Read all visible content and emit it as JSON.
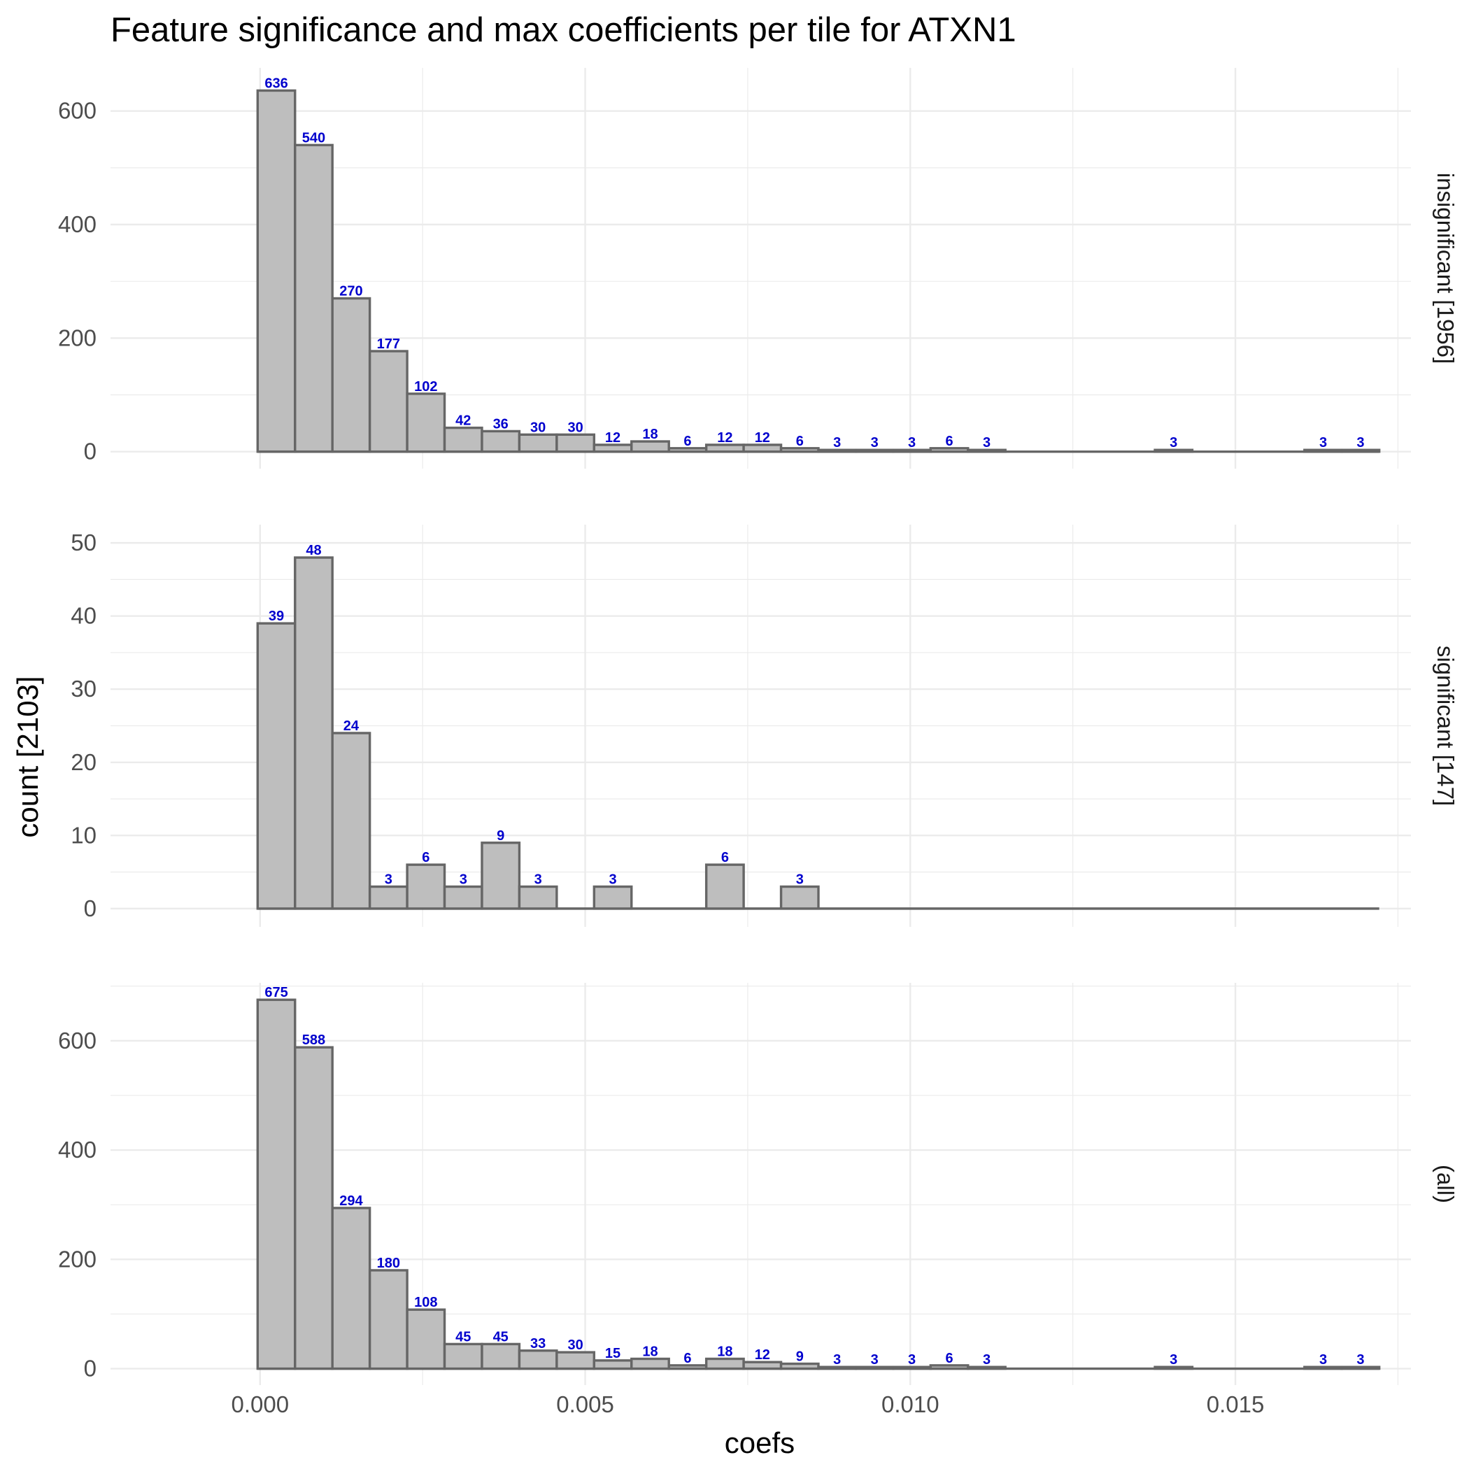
{
  "chart_data": {
    "type": "bar",
    "title": "Feature significance and max coefficients per tile for ATXN1",
    "xlabel": "coefs",
    "ylabel": "count [2103]",
    "bin_width": 0.000575,
    "bin_start": -3.75e-05,
    "bin_count": 30,
    "x_range": [
      -0.0023,
      0.0177
    ],
    "x_ticks": [
      0.0,
      0.005,
      0.01,
      0.015
    ],
    "x_tick_labels": [
      "0.000",
      "0.005",
      "0.010",
      "0.015"
    ],
    "grid": true,
    "bar_color": "#bebebe",
    "bar_outline_color": "#666666",
    "label_color": "#0000cd",
    "panels": [
      {
        "strip_label": "insignificant [1956]",
        "ylim": [
          -30,
          676
        ],
        "y_ticks": [
          0,
          200,
          400,
          600
        ],
        "y_tick_labels": [
          "0",
          "200",
          "400",
          "600"
        ],
        "counts": [
          636,
          540,
          270,
          177,
          102,
          42,
          36,
          30,
          30,
          12,
          18,
          6,
          12,
          12,
          6,
          3,
          3,
          3,
          6,
          3,
          0,
          0,
          0,
          0,
          3,
          0,
          0,
          0,
          3,
          3
        ]
      },
      {
        "strip_label": "significant [147]",
        "ylim": [
          -2.5,
          52.5
        ],
        "y_ticks": [
          0,
          10,
          20,
          30,
          40,
          50
        ],
        "y_tick_labels": [
          "0",
          "10",
          "20",
          "30",
          "40",
          "50"
        ],
        "counts": [
          39,
          48,
          24,
          3,
          6,
          3,
          9,
          3,
          0,
          3,
          0,
          0,
          6,
          0,
          3,
          0,
          0,
          0,
          0,
          0,
          0,
          0,
          0,
          0,
          0,
          0,
          0,
          0,
          0,
          0
        ]
      },
      {
        "strip_label": "(all)",
        "ylim": [
          -30,
          706
        ],
        "y_ticks": [
          0,
          200,
          400,
          600
        ],
        "y_tick_labels": [
          "0",
          "200",
          "400",
          "600"
        ],
        "counts": [
          675,
          588,
          294,
          180,
          108,
          45,
          45,
          33,
          30,
          15,
          18,
          6,
          18,
          12,
          9,
          3,
          3,
          3,
          6,
          3,
          0,
          0,
          0,
          0,
          3,
          0,
          0,
          0,
          3,
          3
        ]
      }
    ]
  }
}
